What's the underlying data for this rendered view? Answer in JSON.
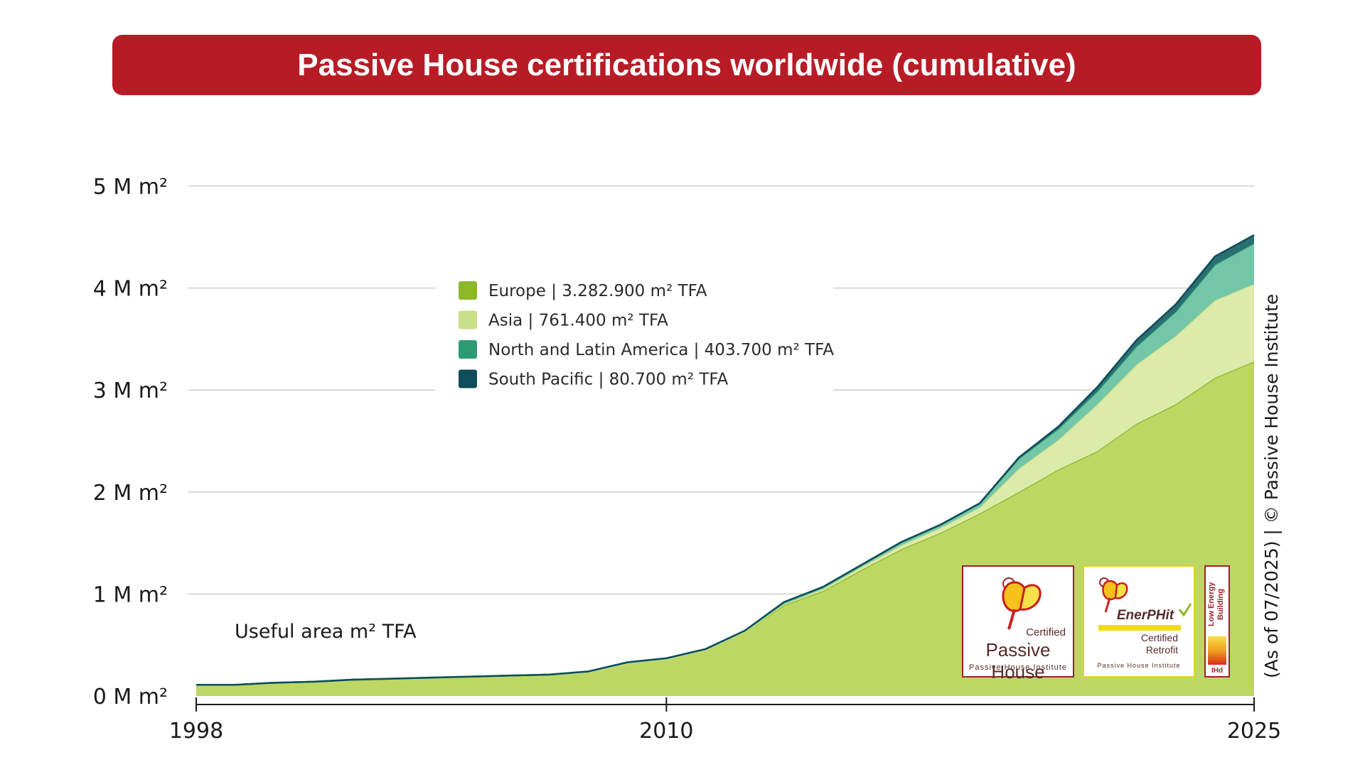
{
  "title": "Passive House certifications worldwide (cumulative)",
  "unit_note": "Useful area m² TFA",
  "credit": "(As of 07/2025) | © Passive House Institute",
  "logos": {
    "passive_house": {
      "certified": "Certified",
      "name": "Passive House",
      "institute": "Passive House Institute"
    },
    "enerphit": {
      "name": "EnerPHit",
      "certified": "Certified",
      "retrofit": "Retrofit",
      "institute": "Passive House Institute"
    },
    "low_energy": {
      "name": "Low Energy Building",
      "mark": "IHd"
    }
  },
  "chart_data": {
    "type": "area",
    "stacked": true,
    "x": [
      1998,
      1999,
      2000,
      2001,
      2002,
      2003,
      2004,
      2005,
      2006,
      2007,
      2008,
      2009,
      2010,
      2011,
      2012,
      2013,
      2014,
      2015,
      2016,
      2017,
      2018,
      2019,
      2020,
      2021,
      2022,
      2023,
      2024,
      2025
    ],
    "xticks": [
      "1998",
      "2010",
      "2025"
    ],
    "yticks": [
      "0 M m²",
      "1 M m²",
      "2 M m²",
      "3 M m²",
      "4 M m²",
      "5 M m²"
    ],
    "ylim": [
      0,
      5
    ],
    "grid": true,
    "legend_position": "top-center",
    "series": [
      {
        "name": "Europe | 3.282.900 m² TFA",
        "color": "#8db82a",
        "fill": "#bcd764",
        "values": [
          0.11,
          0.11,
          0.13,
          0.14,
          0.16,
          0.17,
          0.18,
          0.19,
          0.2,
          0.21,
          0.23,
          0.32,
          0.36,
          0.45,
          0.63,
          0.89,
          1.03,
          1.24,
          1.44,
          1.6,
          1.79,
          2.0,
          2.22,
          2.4,
          2.67,
          2.86,
          3.12,
          3.28
        ]
      },
      {
        "name": "Asia | 761.400 m² TFA",
        "color": "#c8df8a",
        "fill": "#dceaaa",
        "values": [
          0,
          0,
          0,
          0,
          0,
          0,
          0,
          0,
          0,
          0,
          0,
          0,
          0,
          0,
          0,
          0.01,
          0.02,
          0.03,
          0.04,
          0.05,
          0.06,
          0.23,
          0.29,
          0.46,
          0.58,
          0.67,
          0.76,
          0.76
        ]
      },
      {
        "name": "North and Latin America | 403.700 m² TFA",
        "color": "#2e9a72",
        "fill": "#74c6a8",
        "values": [
          0,
          0,
          0,
          0,
          0,
          0,
          0,
          0,
          0,
          0,
          0.01,
          0.01,
          0.01,
          0.01,
          0.01,
          0.02,
          0.02,
          0.02,
          0.03,
          0.03,
          0.04,
          0.1,
          0.11,
          0.13,
          0.18,
          0.24,
          0.35,
          0.4
        ]
      },
      {
        "name": "South Pacific | 80.700 m² TFA",
        "color": "#0f4d5a",
        "fill": "#2a6e72",
        "values": [
          0,
          0,
          0,
          0,
          0,
          0,
          0,
          0,
          0,
          0,
          0,
          0,
          0,
          0,
          0,
          0,
          0,
          0,
          0,
          0,
          0,
          0.01,
          0.02,
          0.04,
          0.06,
          0.07,
          0.08,
          0.08
        ]
      }
    ]
  }
}
